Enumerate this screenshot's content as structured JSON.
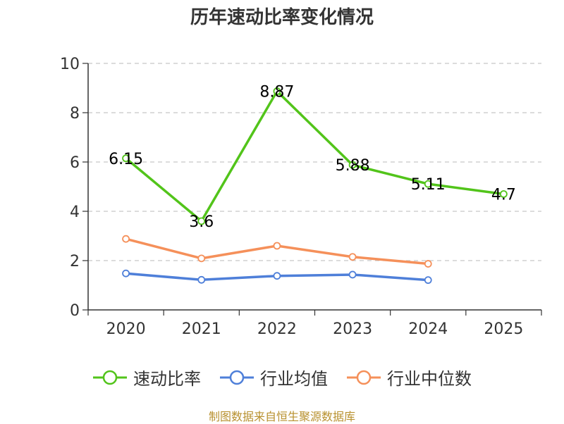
{
  "title": "历年速动比率变化情况",
  "source": "制图数据来自恒生聚源数据库",
  "chart_data": {
    "type": "line",
    "title": "历年速动比率变化情况",
    "categories": [
      "2020",
      "2021",
      "2022",
      "2023",
      "2024",
      "2025"
    ],
    "ylim": [
      0,
      10
    ],
    "yticks": [
      0,
      2,
      4,
      6,
      8,
      10
    ],
    "grid": true,
    "legend_position": "bottom",
    "series": [
      {
        "name": "速动比率",
        "color": "#52c41a",
        "values": [
          6.15,
          3.6,
          8.87,
          5.88,
          5.11,
          4.7
        ],
        "labels": [
          "6.15",
          "3.6",
          "8.87",
          "5.88",
          "5.11",
          "4.7"
        ]
      },
      {
        "name": "行业均值",
        "color": "#4e7fd9",
        "values": [
          1.48,
          1.22,
          1.38,
          1.43,
          1.21,
          null
        ]
      },
      {
        "name": "行业中位数",
        "color": "#f5905a",
        "values": [
          2.88,
          2.09,
          2.6,
          2.15,
          1.87,
          null
        ]
      }
    ]
  }
}
